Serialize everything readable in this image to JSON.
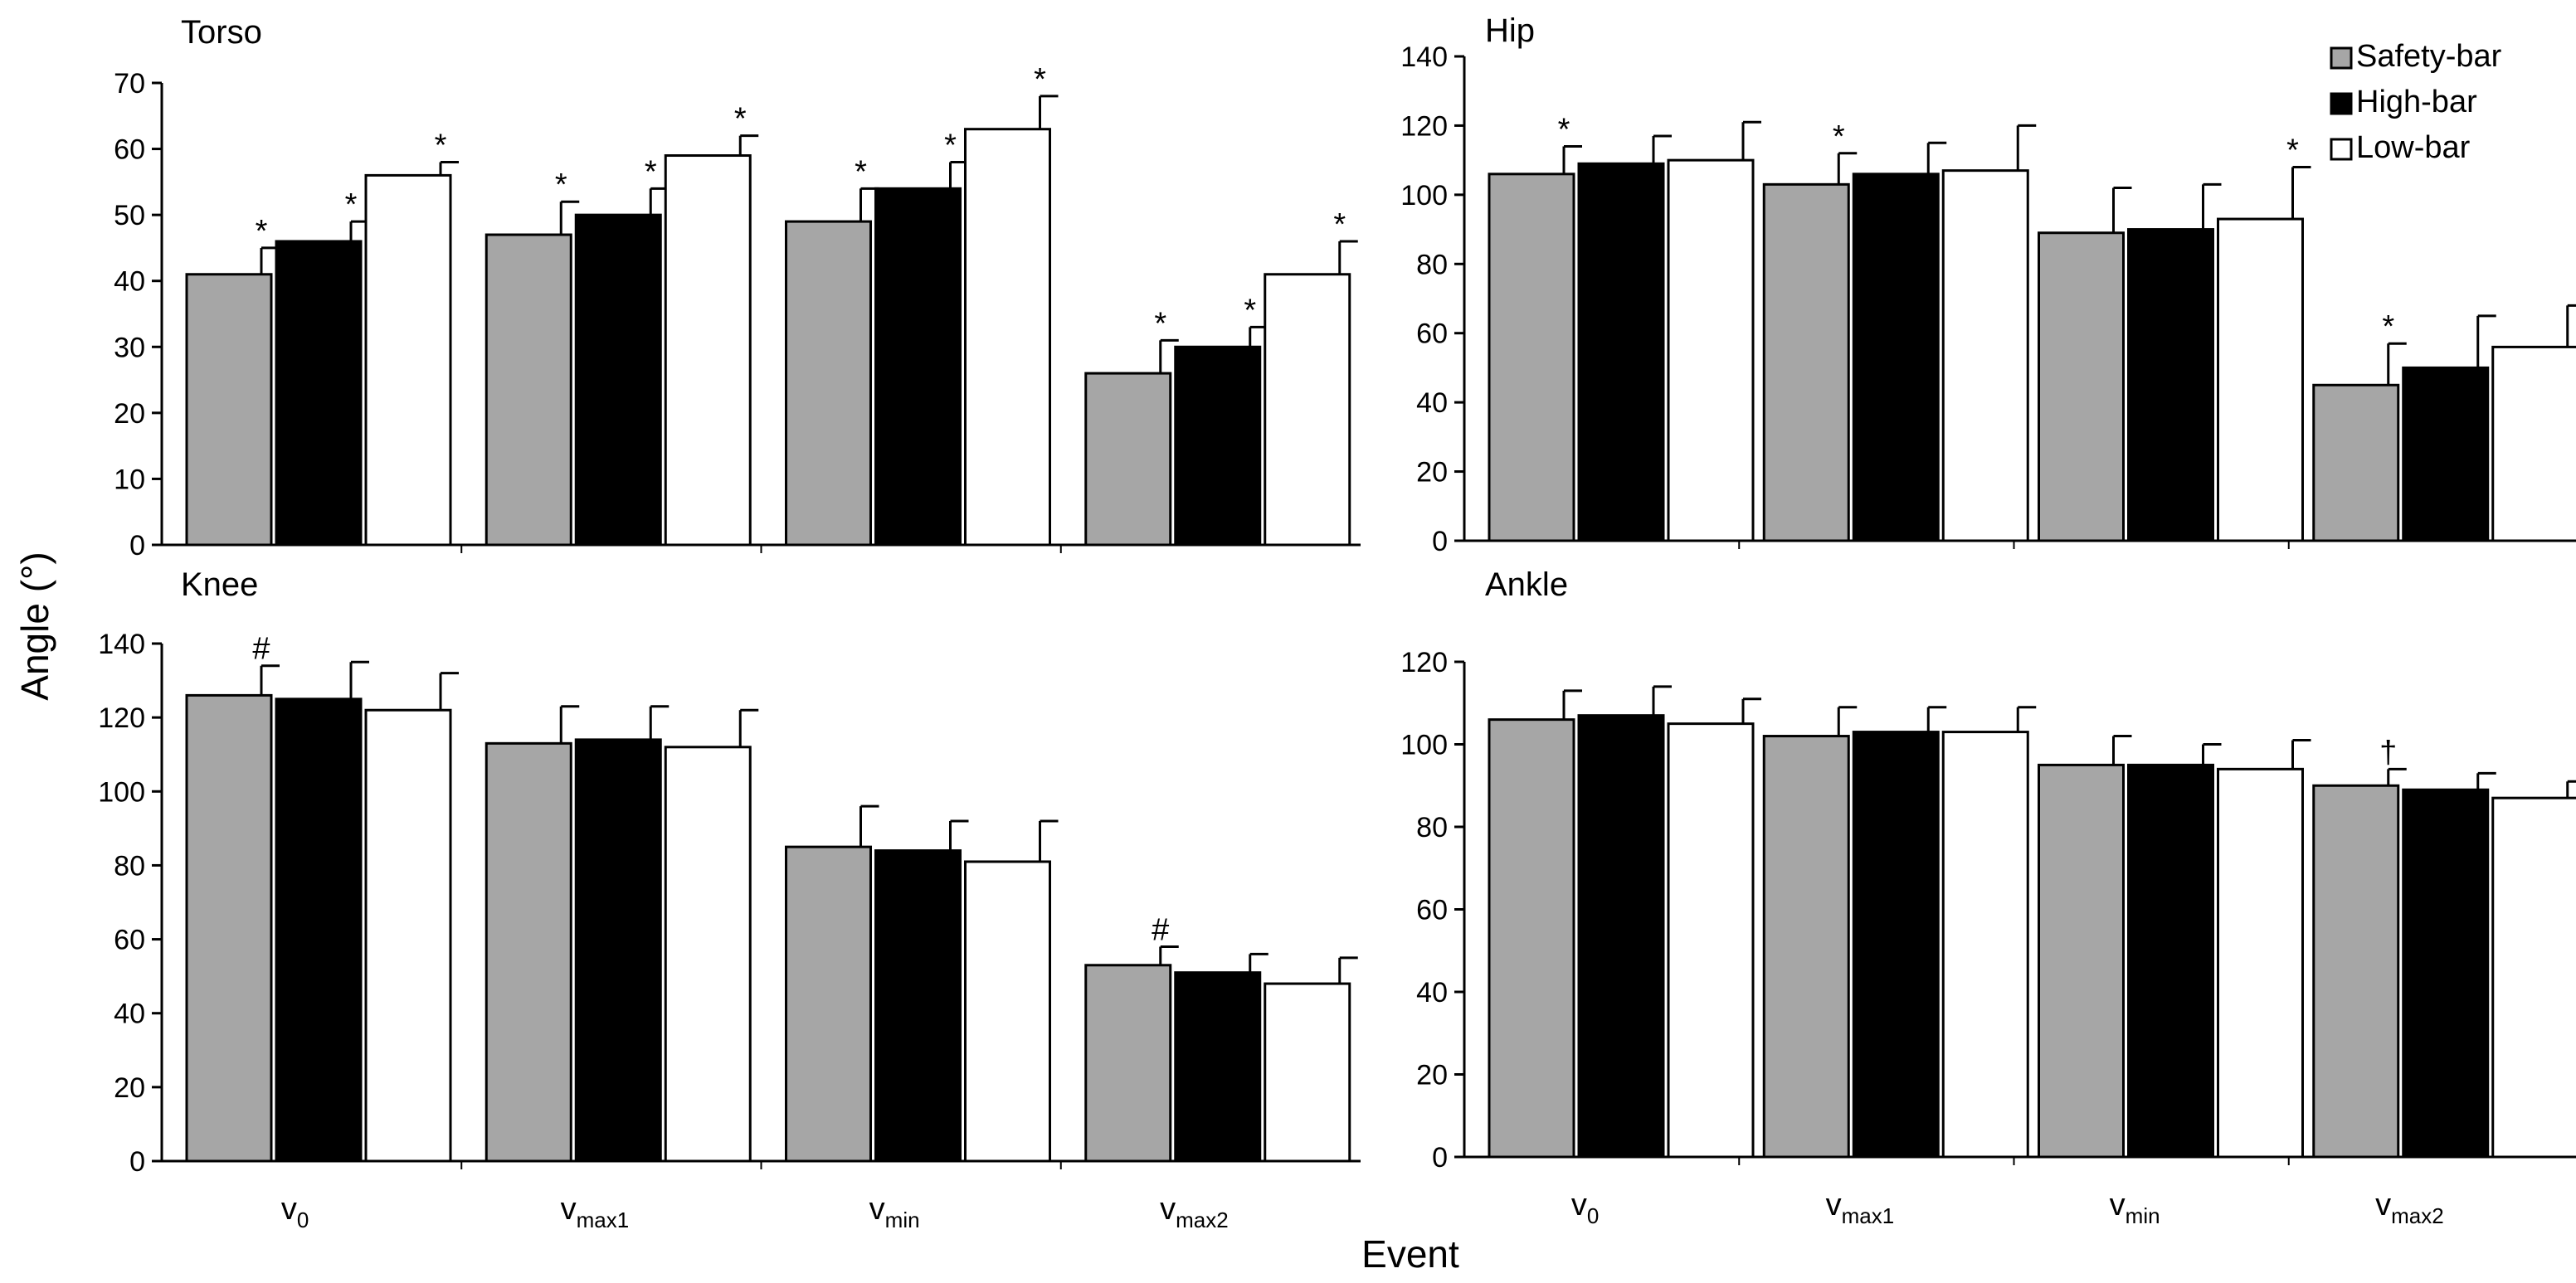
{
  "chart_data": [
    {
      "type": "bar",
      "title": "Torso",
      "ylim": [
        0,
        70
      ],
      "yticks": [
        0,
        10,
        20,
        30,
        40,
        50,
        60,
        70
      ],
      "categories": [
        "v0",
        "vmax1",
        "vmin",
        "vmax2"
      ],
      "series": [
        {
          "name": "Safety-bar",
          "values": [
            41,
            47,
            49,
            26
          ],
          "errors": [
            4,
            5,
            5,
            5
          ],
          "marks": [
            "*",
            "*",
            "*",
            "*"
          ]
        },
        {
          "name": "High-bar",
          "values": [
            46,
            50,
            54,
            30
          ],
          "errors": [
            3,
            4,
            4,
            3
          ],
          "marks": [
            "*",
            "*",
            "*",
            "*"
          ]
        },
        {
          "name": "Low-bar",
          "values": [
            56,
            59,
            63,
            41
          ],
          "errors": [
            2,
            3,
            5,
            5
          ],
          "marks": [
            "*",
            "*",
            "*",
            "*"
          ]
        }
      ]
    },
    {
      "type": "bar",
      "title": "Hip",
      "ylim": [
        0,
        140
      ],
      "yticks": [
        0,
        20,
        40,
        60,
        80,
        100,
        120,
        140
      ],
      "categories": [
        "v0",
        "vmax1",
        "vmin",
        "vmax2"
      ],
      "series": [
        {
          "name": "Safety-bar",
          "values": [
            106,
            103,
            89,
            45
          ],
          "errors": [
            8,
            9,
            13,
            12
          ],
          "marks": [
            "*",
            "*",
            "",
            "*"
          ]
        },
        {
          "name": "High-bar",
          "values": [
            109,
            106,
            90,
            50
          ],
          "errors": [
            8,
            9,
            13,
            15
          ],
          "marks": [
            "",
            "",
            "",
            ""
          ]
        },
        {
          "name": "Low-bar",
          "values": [
            110,
            107,
            93,
            56
          ],
          "errors": [
            11,
            13,
            15,
            12
          ],
          "marks": [
            "",
            "",
            "*",
            ""
          ]
        }
      ]
    },
    {
      "type": "bar",
      "title": "Knee",
      "ylim": [
        0,
        140
      ],
      "yticks": [
        0,
        20,
        40,
        60,
        80,
        100,
        120,
        140
      ],
      "categories": [
        "v0",
        "vmax1",
        "vmin",
        "vmax2"
      ],
      "series": [
        {
          "name": "Safety-bar",
          "values": [
            126,
            113,
            85,
            53
          ],
          "errors": [
            8,
            10,
            11,
            5
          ],
          "marks": [
            "#",
            "",
            "",
            "#"
          ]
        },
        {
          "name": "High-bar",
          "values": [
            125,
            114,
            84,
            51
          ],
          "errors": [
            10,
            9,
            8,
            5
          ],
          "marks": [
            "",
            "",
            "",
            ""
          ]
        },
        {
          "name": "Low-bar",
          "values": [
            122,
            112,
            81,
            48
          ],
          "errors": [
            10,
            10,
            11,
            7
          ],
          "marks": [
            "",
            "",
            "",
            ""
          ]
        }
      ]
    },
    {
      "type": "bar",
      "title": "Ankle",
      "ylim": [
        0,
        120
      ],
      "yticks": [
        0,
        20,
        40,
        60,
        80,
        100,
        120
      ],
      "categories": [
        "v0",
        "vmax1",
        "vmin",
        "vmax2"
      ],
      "series": [
        {
          "name": "Safety-bar",
          "values": [
            106,
            102,
            95,
            90
          ],
          "errors": [
            7,
            7,
            7,
            4
          ],
          "marks": [
            "",
            "",
            "",
            "†"
          ]
        },
        {
          "name": "High-bar",
          "values": [
            107,
            103,
            95,
            89
          ],
          "errors": [
            7,
            6,
            5,
            4
          ],
          "marks": [
            "",
            "",
            "",
            ""
          ]
        },
        {
          "name": "Low-bar",
          "values": [
            105,
            103,
            94,
            87
          ],
          "errors": [
            6,
            6,
            7,
            4
          ],
          "marks": [
            "",
            "",
            "",
            ""
          ]
        }
      ]
    }
  ],
  "legend": [
    {
      "label": "Safety-bar",
      "color": "#a6a6a6"
    },
    {
      "label": "High-bar",
      "color": "#000000"
    },
    {
      "label": "Low-bar",
      "color": "#ffffff"
    }
  ],
  "axes": {
    "ylabel": "Angle (°)",
    "xlabel": "Event",
    "category_labels": [
      {
        "base": "v",
        "sub": "0"
      },
      {
        "base": "v",
        "sub": "max1"
      },
      {
        "base": "v",
        "sub": "min"
      },
      {
        "base": "v",
        "sub": "max2"
      }
    ]
  }
}
